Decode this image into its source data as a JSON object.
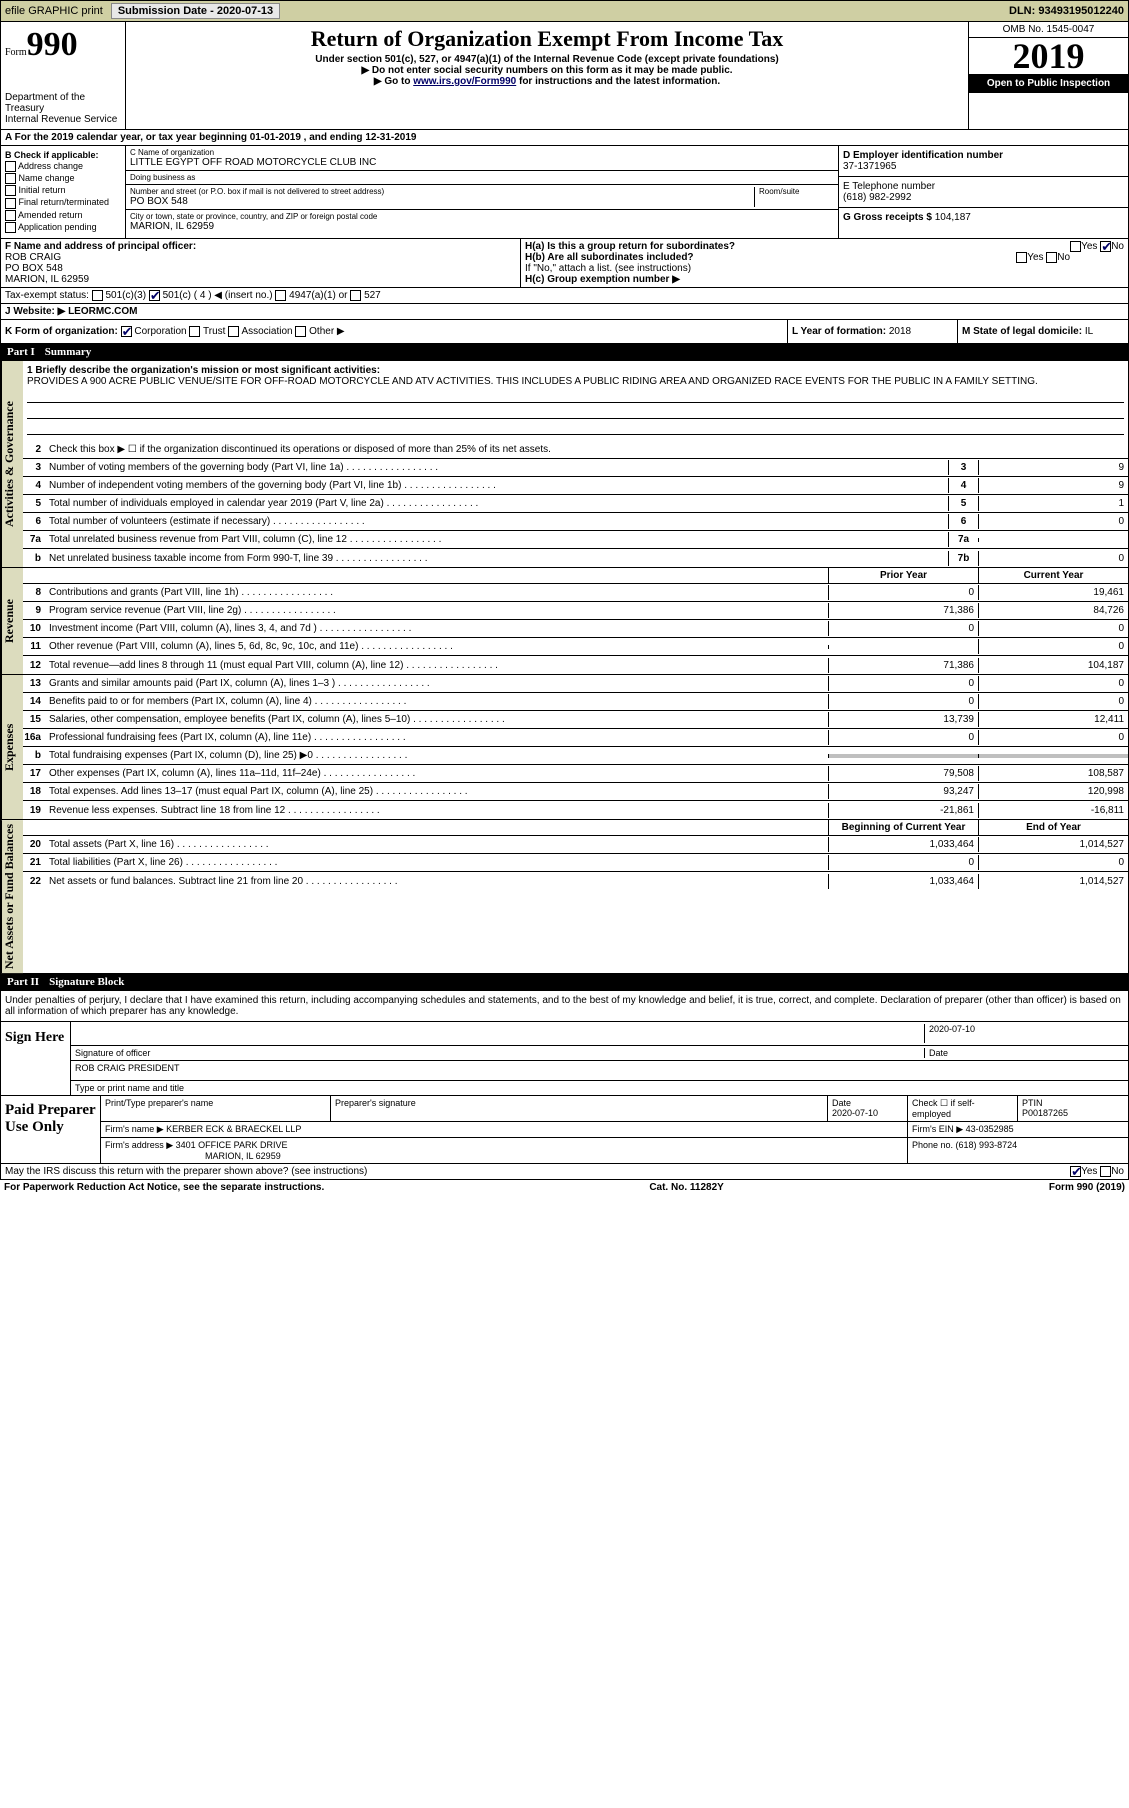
{
  "topbar": {
    "efile": "efile GRAPHIC print",
    "sub_label": "Submission Date - ",
    "sub_date": "2020-07-13",
    "dln_label": "DLN: ",
    "dln": "93493195012240"
  },
  "header": {
    "form_word": "Form",
    "form_num": "990",
    "dept": "Department of the Treasury\nInternal Revenue Service",
    "title": "Return of Organization Exempt From Income Tax",
    "subtitle": "Under section 501(c), 527, or 4947(a)(1) of the Internal Revenue Code (except private foundations)",
    "note1": "▶ Do not enter social security numbers on this form as it may be made public.",
    "note2_pre": "▶ Go to ",
    "note2_link": "www.irs.gov/Form990",
    "note2_post": " for instructions and the latest information.",
    "omb": "OMB No. 1545-0047",
    "year": "2019",
    "inspect": "Open to Public Inspection"
  },
  "calyear": "A For the 2019 calendar year, or tax year beginning 01-01-2019   , and ending 12-31-2019",
  "sectionB": {
    "label": "B Check if applicable:",
    "opts": [
      "Address change",
      "Name change",
      "Initial return",
      "Final return/terminated",
      "Amended return",
      "Application pending"
    ]
  },
  "entity": {
    "name_label": "C Name of organization",
    "name": "LITTLE EGYPT OFF ROAD MOTORCYCLE CLUB INC",
    "dba_label": "Doing business as",
    "dba": "",
    "addr_label": "Number and street (or P.O. box if mail is not delivered to street address)",
    "room_label": "Room/suite",
    "addr": "PO BOX 548",
    "city_label": "City or town, state or province, country, and ZIP or foreign postal code",
    "city": "MARION, IL  62959"
  },
  "rightcol": {
    "ein_label": "D Employer identification number",
    "ein": "37-1371965",
    "tel_label": "E Telephone number",
    "tel": "(618) 982-2992",
    "gross_label": "G Gross receipts $ ",
    "gross": "104,187"
  },
  "officer": {
    "label": "F  Name and address of principal officer:",
    "name": "ROB CRAIG",
    "addr1": "PO BOX 548",
    "addr2": "MARION, IL  62959"
  },
  "hblock": {
    "ha": "H(a)  Is this a group return for subordinates?",
    "ha_yes": "Yes",
    "ha_no": "No",
    "hb": "H(b)  Are all subordinates included?",
    "hb_note": "If \"No,\" attach a list. (see instructions)",
    "hc": "H(c)  Group exemption number ▶"
  },
  "taxstatus": {
    "label": "Tax-exempt status:",
    "o1": "501(c)(3)",
    "o2": "501(c) ( 4 ) ◀ (insert no.)",
    "o3": "4947(a)(1) or",
    "o4": "527"
  },
  "website": {
    "label": "J  Website: ▶ ",
    "val": "LEORMC.COM"
  },
  "krow": {
    "klabel": "K Form of organization:",
    "k_corp": "Corporation",
    "k_trust": "Trust",
    "k_assoc": "Association",
    "k_other": "Other ▶",
    "llabel": "L Year of formation: ",
    "lval": "2018",
    "mlabel": "M State of legal domicile: ",
    "mval": "IL"
  },
  "part1": {
    "num": "Part I",
    "title": "Summary"
  },
  "mission": {
    "label": "1  Briefly describe the organization's mission or most significant activities:",
    "text": "PROVIDES A 900 ACRE PUBLIC VENUE/SITE FOR OFF-ROAD MOTORCYCLE AND ATV ACTIVITIES. THIS INCLUDES A PUBLIC RIDING AREA AND ORGANIZED RACE EVENTS FOR THE PUBLIC IN A FAMILY SETTING."
  },
  "line2": "Check this box ▶ ☐  if the organization discontinued its operations or disposed of more than 25% of its net assets.",
  "gov_lines": [
    {
      "n": "3",
      "t": "Number of voting members of the governing body (Part VI, line 1a)",
      "c": "3",
      "v": "9"
    },
    {
      "n": "4",
      "t": "Number of independent voting members of the governing body (Part VI, line 1b)",
      "c": "4",
      "v": "9"
    },
    {
      "n": "5",
      "t": "Total number of individuals employed in calendar year 2019 (Part V, line 2a)",
      "c": "5",
      "v": "1"
    },
    {
      "n": "6",
      "t": "Total number of volunteers (estimate if necessary)",
      "c": "6",
      "v": "0"
    },
    {
      "n": "7a",
      "t": "Total unrelated business revenue from Part VIII, column (C), line 12",
      "c": "7a",
      "v": ""
    },
    {
      "n": "b",
      "t": "Net unrelated business taxable income from Form 990-T, line 39",
      "c": "7b",
      "v": "0"
    }
  ],
  "col_hdr": {
    "prior": "Prior Year",
    "current": "Current Year"
  },
  "revenue_lines": [
    {
      "n": "8",
      "t": "Contributions and grants (Part VIII, line 1h)",
      "p": "0",
      "c": "19,461"
    },
    {
      "n": "9",
      "t": "Program service revenue (Part VIII, line 2g)",
      "p": "71,386",
      "c": "84,726"
    },
    {
      "n": "10",
      "t": "Investment income (Part VIII, column (A), lines 3, 4, and 7d )",
      "p": "0",
      "c": "0"
    },
    {
      "n": "11",
      "t": "Other revenue (Part VIII, column (A), lines 5, 6d, 8c, 9c, 10c, and 11e)",
      "p": "",
      "c": "0"
    },
    {
      "n": "12",
      "t": "Total revenue—add lines 8 through 11 (must equal Part VIII, column (A), line 12)",
      "p": "71,386",
      "c": "104,187"
    }
  ],
  "expense_lines": [
    {
      "n": "13",
      "t": "Grants and similar amounts paid (Part IX, column (A), lines 1–3 )",
      "p": "0",
      "c": "0"
    },
    {
      "n": "14",
      "t": "Benefits paid to or for members (Part IX, column (A), line 4)",
      "p": "0",
      "c": "0"
    },
    {
      "n": "15",
      "t": "Salaries, other compensation, employee benefits (Part IX, column (A), lines 5–10)",
      "p": "13,739",
      "c": "12,411"
    },
    {
      "n": "16a",
      "t": "Professional fundraising fees (Part IX, column (A), line 11e)",
      "p": "0",
      "c": "0"
    },
    {
      "n": "b",
      "t": "Total fundraising expenses (Part IX, column (D), line 25) ▶0",
      "p": "shade",
      "c": "shade"
    },
    {
      "n": "17",
      "t": "Other expenses (Part IX, column (A), lines 11a–11d, 11f–24e)",
      "p": "79,508",
      "c": "108,587"
    },
    {
      "n": "18",
      "t": "Total expenses. Add lines 13–17 (must equal Part IX, column (A), line 25)",
      "p": "93,247",
      "c": "120,998"
    },
    {
      "n": "19",
      "t": "Revenue less expenses. Subtract line 18 from line 12",
      "p": "-21,861",
      "c": "-16,811"
    }
  ],
  "na_hdr": {
    "beg": "Beginning of Current Year",
    "end": "End of Year"
  },
  "na_lines": [
    {
      "n": "20",
      "t": "Total assets (Part X, line 16)",
      "p": "1,033,464",
      "c": "1,014,527"
    },
    {
      "n": "21",
      "t": "Total liabilities (Part X, line 26)",
      "p": "0",
      "c": "0"
    },
    {
      "n": "22",
      "t": "Net assets or fund balances. Subtract line 21 from line 20",
      "p": "1,033,464",
      "c": "1,014,527"
    }
  ],
  "part2": {
    "num": "Part II",
    "title": "Signature Block"
  },
  "sig": {
    "intro": "Under penalties of perjury, I declare that I have examined this return, including accompanying schedules and statements, and to the best of my knowledge and belief, it is true, correct, and complete. Declaration of preparer (other than officer) is based on all information of which preparer has any knowledge.",
    "here": "Sign Here",
    "sig_officer": "Signature of officer",
    "date": "2020-07-10",
    "date_lbl": "Date",
    "name": "ROB CRAIG  PRESIDENT",
    "type_lbl": "Type or print name and title"
  },
  "prep": {
    "label": "Paid Preparer Use Only",
    "h1": "Print/Type preparer's name",
    "h2": "Preparer's signature",
    "h3": "Date",
    "h3v": "2020-07-10",
    "h4": "Check ☐ if self-employed",
    "h5": "PTIN",
    "h5v": "P00187265",
    "firm_lbl": "Firm's name    ▶ ",
    "firm": "KERBER ECK & BRAECKEL LLP",
    "ein_lbl": "Firm's EIN ▶ ",
    "ein": "43-0352985",
    "addr_lbl": "Firm's address ▶ ",
    "addr1": "3401 OFFICE PARK DRIVE",
    "addr2": "MARION, IL  62959",
    "phone_lbl": "Phone no. ",
    "phone": "(618) 993-8724"
  },
  "discuss": {
    "text": "May the IRS discuss this return with the preparer shown above? (see instructions)",
    "yes": "Yes",
    "no": "No"
  },
  "footer": {
    "left": "For Paperwork Reduction Act Notice, see the separate instructions.",
    "mid": "Cat. No. 11282Y",
    "right": "Form 990 (2019)"
  },
  "vtabs": {
    "gov": "Activities & Governance",
    "rev": "Revenue",
    "exp": "Expenses",
    "na": "Net Assets or Fund Balances"
  }
}
